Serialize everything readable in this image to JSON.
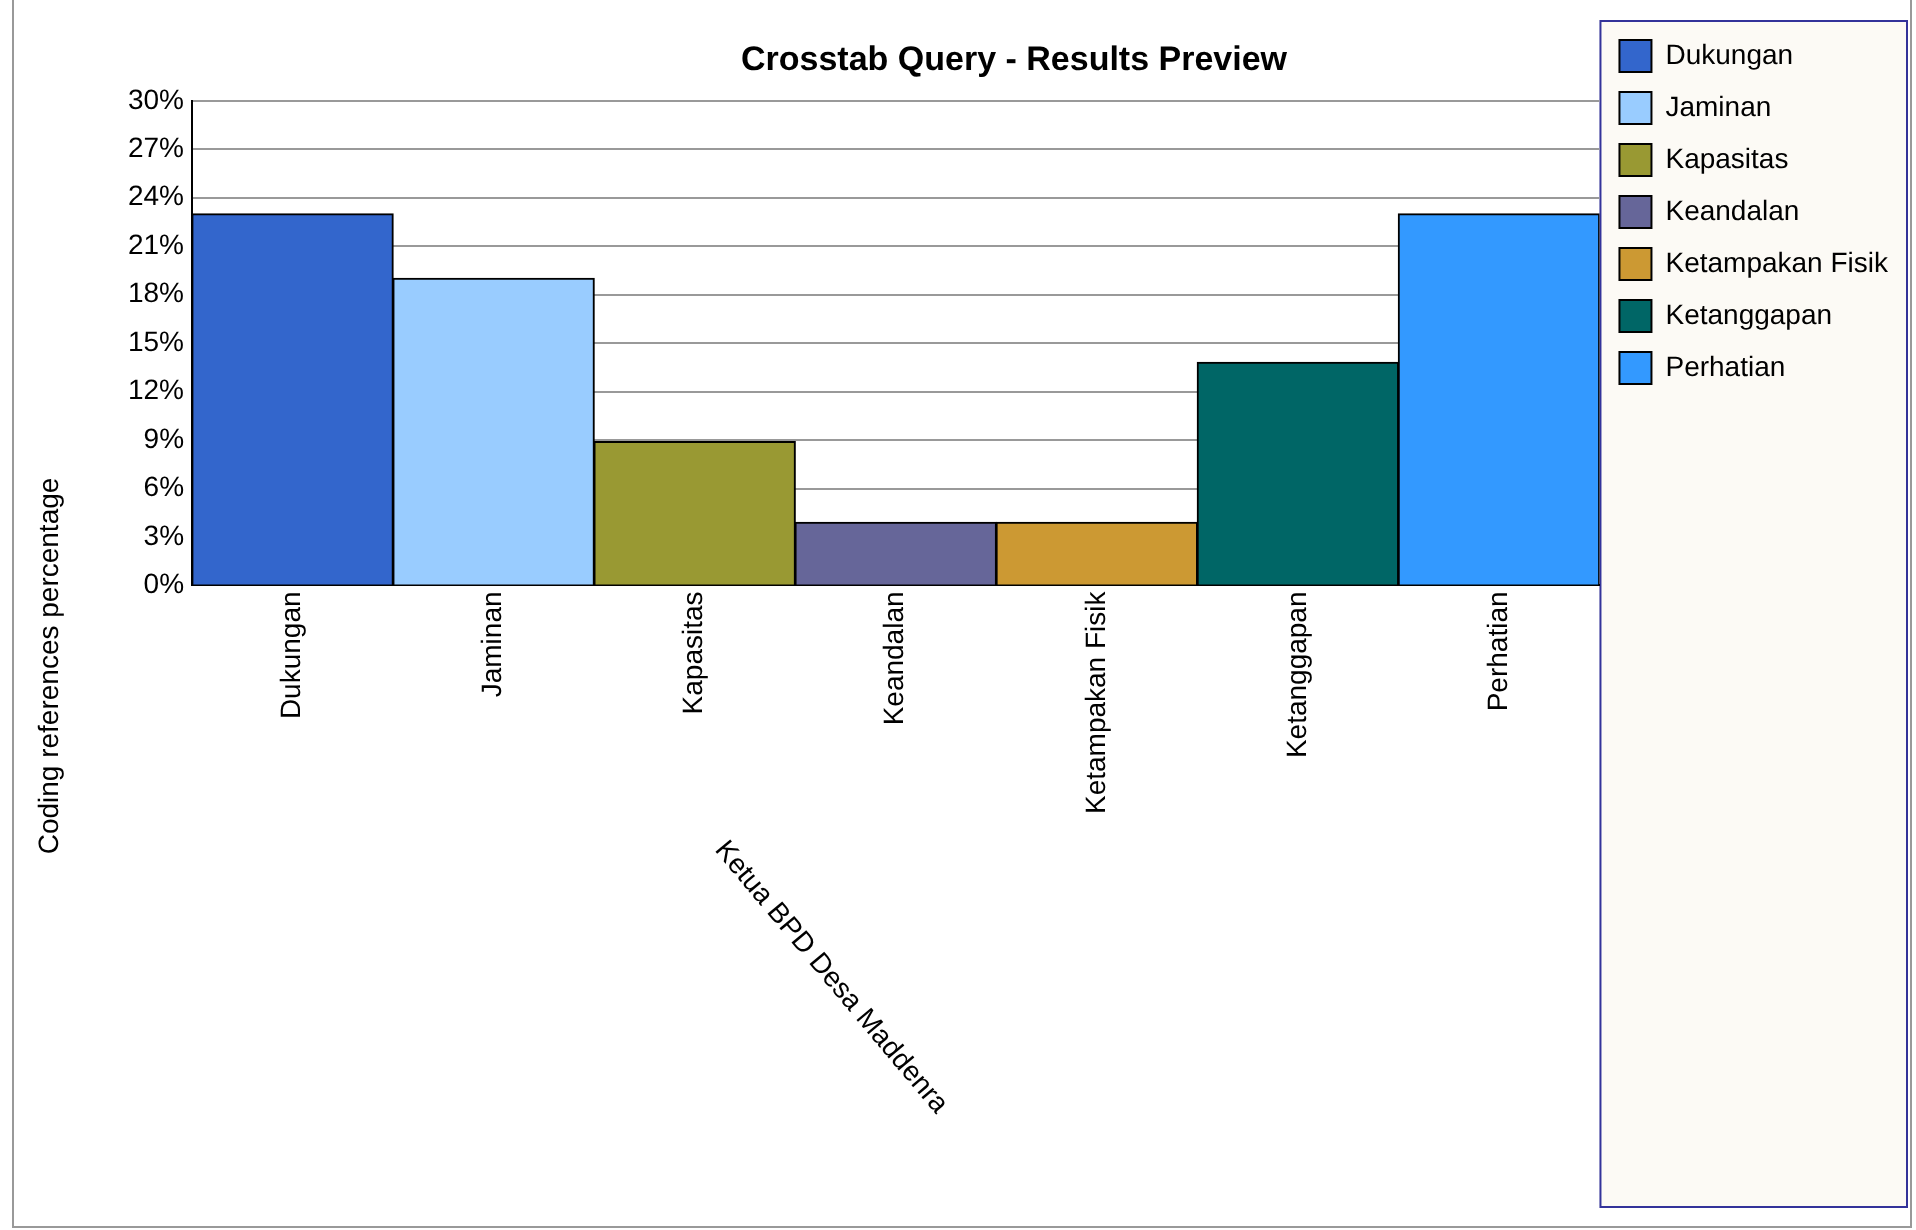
{
  "chart_data": {
    "type": "bar",
    "title": "Crosstab Query - Results Preview",
    "xlabel": "Ketua BPD Desa Maddenra",
    "ylabel": "Coding references percentage",
    "categories": [
      "Dukungan",
      "Jaminan",
      "Kapasitas",
      "Keandalan",
      "Ketampakan Fisik",
      "Ketanggapan",
      "Perhatian"
    ],
    "series": [
      {
        "name": "Dukungan",
        "color": "#3366cc",
        "values": [
          23,
          null,
          null,
          null,
          null,
          null,
          null
        ]
      },
      {
        "name": "Jaminan",
        "color": "#99ccff",
        "values": [
          null,
          19,
          null,
          null,
          null,
          null,
          null
        ]
      },
      {
        "name": "Kapasitas",
        "color": "#999933",
        "values": [
          null,
          null,
          8.9,
          null,
          null,
          null,
          null
        ]
      },
      {
        "name": "Keandalan",
        "color": "#666699",
        "values": [
          null,
          null,
          null,
          3.9,
          null,
          null,
          null
        ]
      },
      {
        "name": "Ketampakan Fisik",
        "color": "#cc9933",
        "values": [
          null,
          null,
          null,
          null,
          3.9,
          null,
          null
        ]
      },
      {
        "name": "Ketanggapan",
        "color": "#006666",
        "values": [
          null,
          null,
          null,
          null,
          null,
          13.8,
          null
        ]
      },
      {
        "name": "Perhatian",
        "color": "#3399ff",
        "values": [
          null,
          null,
          null,
          null,
          null,
          null,
          23
        ]
      }
    ],
    "ylim": [
      0,
      30
    ],
    "yticks": [
      {
        "value": 0,
        "label": "0%"
      },
      {
        "value": 3,
        "label": "3%"
      },
      {
        "value": 6,
        "label": "6%"
      },
      {
        "value": 9,
        "label": "9%"
      },
      {
        "value": 12,
        "label": "12%"
      },
      {
        "value": 15,
        "label": "15%"
      },
      {
        "value": 18,
        "label": "18%"
      },
      {
        "value": 21,
        "label": "21%"
      },
      {
        "value": 24,
        "label": "24%"
      },
      {
        "value": 27,
        "label": "27%"
      },
      {
        "value": 30,
        "label": "30%"
      }
    ],
    "grid": "y",
    "legend": "right"
  }
}
